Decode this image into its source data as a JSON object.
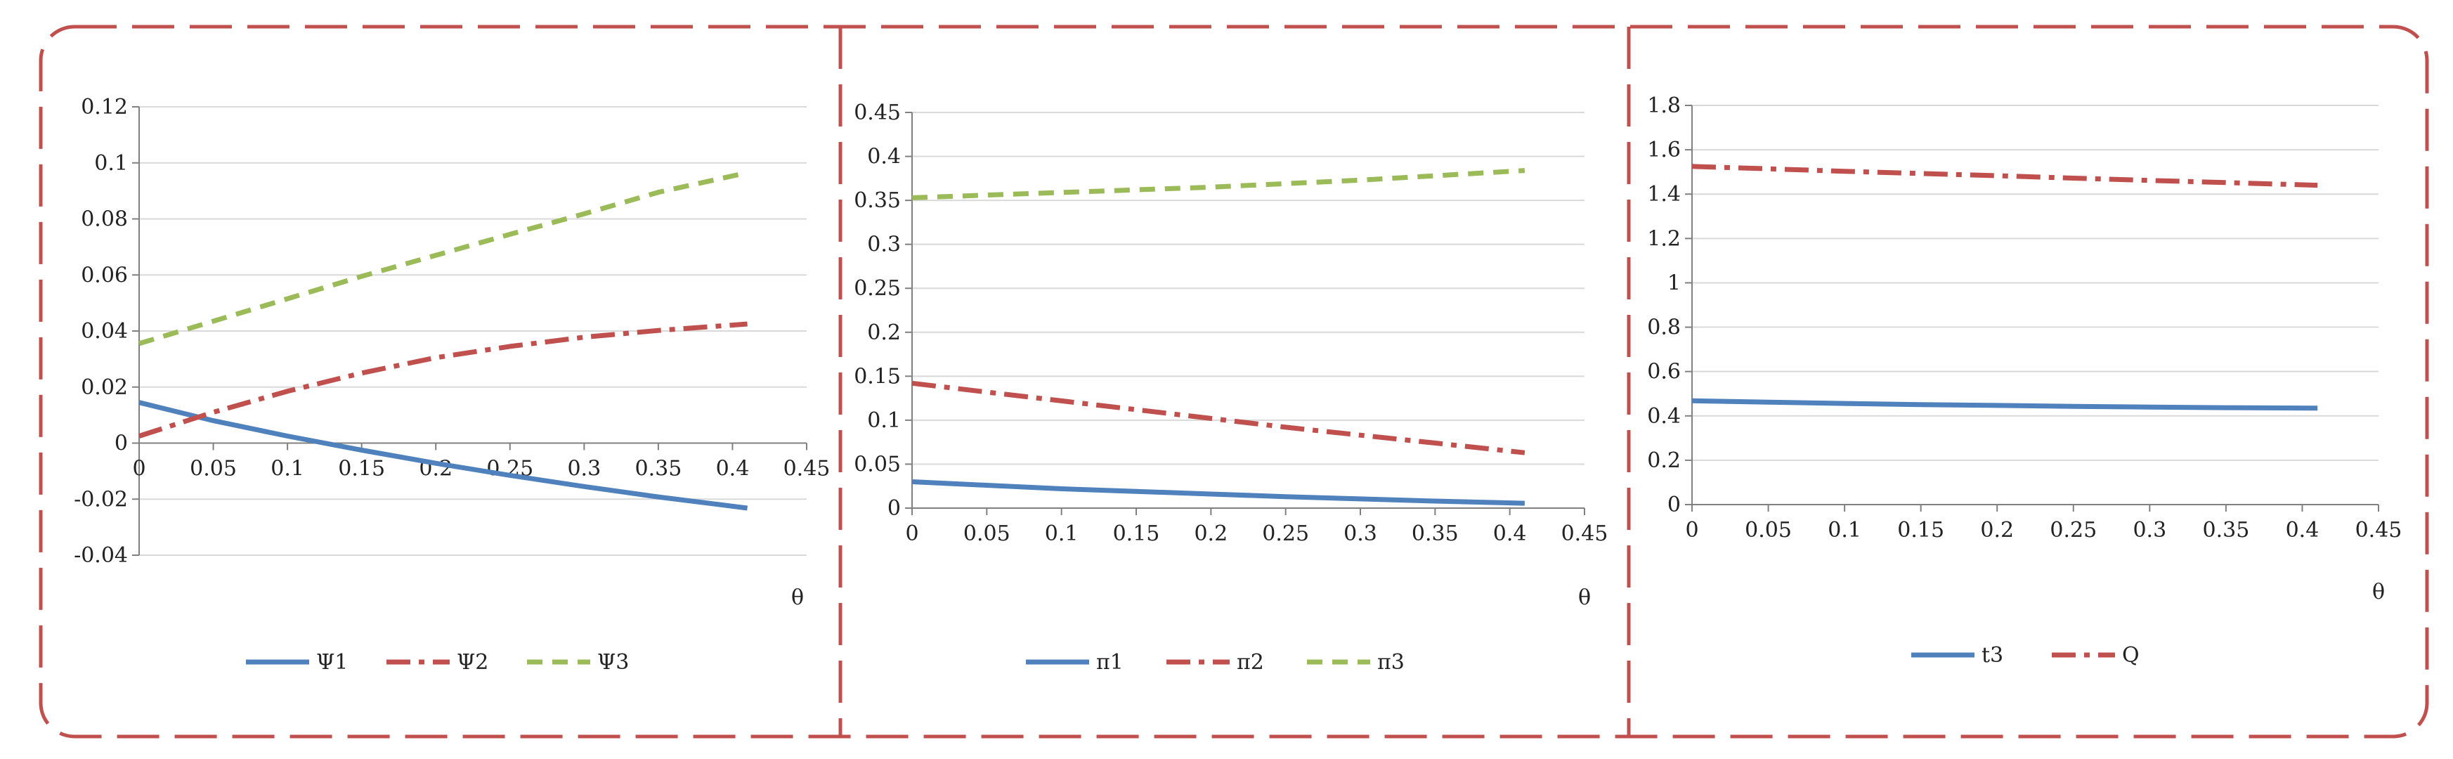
{
  "frame": {
    "border_color": "#c0504d"
  },
  "chart_data": [
    {
      "type": "line",
      "title": "",
      "xlabel": "θ",
      "ylabel": "",
      "xlim": [
        0,
        0.45
      ],
      "ylim": [
        -0.04,
        0.12
      ],
      "xticks": [
        0,
        0.05,
        0.1,
        0.15,
        0.2,
        0.25,
        0.3,
        0.35,
        0.4,
        0.45
      ],
      "xtick_labels": [
        "0",
        "0.05",
        "0.1",
        "0.15",
        "0.2",
        "0.25",
        "0.3",
        "0.35",
        "0.4",
        "0.45"
      ],
      "yticks": [
        -0.04,
        -0.02,
        0,
        0.02,
        0.04,
        0.06,
        0.08,
        0.1,
        0.12
      ],
      "ytick_labels": [
        "-0.04",
        "-0.02",
        "0",
        "0.02",
        "0.04",
        "0.06",
        "0.08",
        "0.1",
        "0.12"
      ],
      "grid": "horizontal",
      "legend_position": "bottom",
      "x": [
        0,
        0.05,
        0.1,
        0.15,
        0.2,
        0.25,
        0.3,
        0.35,
        0.41
      ],
      "series": [
        {
          "name": "Ψ1",
          "color": "#4f81bd",
          "style": "solid",
          "values": [
            0.0145,
            0.008,
            0.0025,
            -0.0025,
            -0.0072,
            -0.0115,
            -0.0155,
            -0.0192,
            -0.0232
          ]
        },
        {
          "name": "Ψ2",
          "color": "#c0504d",
          "style": "dashdot",
          "values": [
            0.0025,
            0.011,
            0.0185,
            0.025,
            0.0305,
            0.0345,
            0.0378,
            0.0402,
            0.0425
          ]
        },
        {
          "name": "Ψ3",
          "color": "#9bbb59",
          "style": "dash",
          "values": [
            0.0355,
            0.0435,
            0.0515,
            0.0595,
            0.067,
            0.0745,
            0.0818,
            0.0895,
            0.0965
          ]
        }
      ]
    },
    {
      "type": "line",
      "title": "",
      "xlabel": "θ",
      "ylabel": "",
      "xlim": [
        0,
        0.45
      ],
      "ylim": [
        0,
        0.45
      ],
      "xticks": [
        0,
        0.05,
        0.1,
        0.15,
        0.2,
        0.25,
        0.3,
        0.35,
        0.4,
        0.45
      ],
      "xtick_labels": [
        "0",
        "0.05",
        "0.1",
        "0.15",
        "0.2",
        "0.25",
        "0.3",
        "0.35",
        "0.4",
        "0.45"
      ],
      "yticks": [
        0,
        0.05,
        0.1,
        0.15,
        0.2,
        0.25,
        0.3,
        0.35,
        0.4,
        0.45
      ],
      "ytick_labels": [
        "0",
        "0.05",
        "0.1",
        "0.15",
        "0.2",
        "0.25",
        "0.3",
        "0.35",
        "0.4",
        "0.45"
      ],
      "grid": "horizontal",
      "legend_position": "bottom",
      "x": [
        0,
        0.05,
        0.1,
        0.15,
        0.2,
        0.25,
        0.3,
        0.35,
        0.41
      ],
      "series": [
        {
          "name": "π1",
          "color": "#4f81bd",
          "style": "solid",
          "values": [
            0.03,
            0.026,
            0.022,
            0.019,
            0.016,
            0.013,
            0.0105,
            0.008,
            0.0055
          ]
        },
        {
          "name": "π2",
          "color": "#c0504d",
          "style": "dashdot",
          "values": [
            0.142,
            0.132,
            0.122,
            0.112,
            0.102,
            0.092,
            0.083,
            0.074,
            0.063
          ]
        },
        {
          "name": "π3",
          "color": "#9bbb59",
          "style": "dash",
          "values": [
            0.353,
            0.356,
            0.359,
            0.362,
            0.365,
            0.369,
            0.373,
            0.378,
            0.384
          ]
        }
      ]
    },
    {
      "type": "line",
      "title": "",
      "xlabel": "θ",
      "ylabel": "",
      "xlim": [
        0,
        0.45
      ],
      "ylim": [
        0,
        1.8
      ],
      "xticks": [
        0,
        0.05,
        0.1,
        0.15,
        0.2,
        0.25,
        0.3,
        0.35,
        0.4,
        0.45
      ],
      "xtick_labels": [
        "0",
        "0.05",
        "0.1",
        "0.15",
        "0.2",
        "0.25",
        "0.3",
        "0.35",
        "0.4",
        "0.45"
      ],
      "yticks": [
        0,
        0.2,
        0.4,
        0.6,
        0.8,
        1,
        1.2,
        1.4,
        1.6,
        1.8
      ],
      "ytick_labels": [
        "0",
        "0.2",
        "0.4",
        "0.6",
        "0.8",
        "1",
        "1.2",
        "1.4",
        "1.6",
        "1.8"
      ],
      "grid": "horizontal",
      "legend_position": "bottom",
      "x": [
        0,
        0.05,
        0.1,
        0.15,
        0.2,
        0.25,
        0.3,
        0.35,
        0.41
      ],
      "series": [
        {
          "name": "t3",
          "color": "#4f81bd",
          "style": "solid",
          "values": [
            0.468,
            0.462,
            0.456,
            0.451,
            0.447,
            0.443,
            0.44,
            0.437,
            0.435
          ]
        },
        {
          "name": "Q",
          "color": "#c0504d",
          "style": "dashdot",
          "values": [
            1.525,
            1.514,
            1.503,
            1.493,
            1.483,
            1.472,
            1.462,
            1.452,
            1.44
          ]
        }
      ]
    }
  ]
}
